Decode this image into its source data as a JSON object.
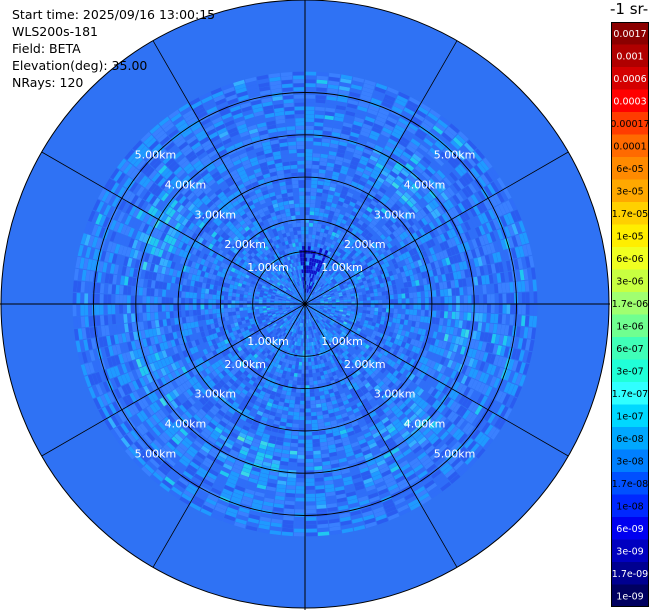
{
  "info": {
    "start_time": "Start time: 2025/09/16 13:00:15",
    "instrument": "WLS200s-181",
    "field": "Field: BETA",
    "elevation": "Elevation(deg): 35.00",
    "nrays": "NRays: 120"
  },
  "colorbar": {
    "title": "-1 sr-",
    "levels": [
      "0.0017",
      "0.001",
      "0.0006",
      "0.0003",
      "0.00017",
      "0.0001",
      "6e-05",
      "3e-05",
      "1.7e-05",
      "1e-05",
      "6e-06",
      "3e-06",
      "1.7e-06",
      "1e-06",
      "6e-07",
      "3e-07",
      "1.7e-07",
      "1e-07",
      "6e-08",
      "3e-08",
      "1.7e-08",
      "1e-08",
      "6e-09",
      "3e-09",
      "1.7e-09",
      "1e-09"
    ],
    "colors": [
      "#8b0000",
      "#b00000",
      "#d40000",
      "#ff0000",
      "#ff3c00",
      "#ff6a00",
      "#ff8a00",
      "#ffa800",
      "#ffd000",
      "#ffee00",
      "#f0ff20",
      "#c8ff40",
      "#a0ff70",
      "#70ff90",
      "#40ffb8",
      "#20ffd8",
      "#30ffff",
      "#00d8ff",
      "#00a8ff",
      "#0080ff",
      "#0050ff",
      "#0028ff",
      "#0000f0",
      "#0000c0",
      "#000090",
      "#000060"
    ]
  },
  "chart_data": {
    "type": "heatmap",
    "projection": "polar PPI scan",
    "field": "BETA",
    "elevation_deg": 35.0,
    "n_rays": 120,
    "ring_labels": [
      "1.00km",
      "2.00km",
      "3.00km",
      "4.00km",
      "5.00km"
    ],
    "range_rings_km": [
      1,
      2,
      3,
      4,
      5
    ],
    "max_range_km": 5.5,
    "grid": true,
    "colorbar_position": "right",
    "dominant_value_range": [
      "6e-08",
      "1.7e-07"
    ]
  }
}
